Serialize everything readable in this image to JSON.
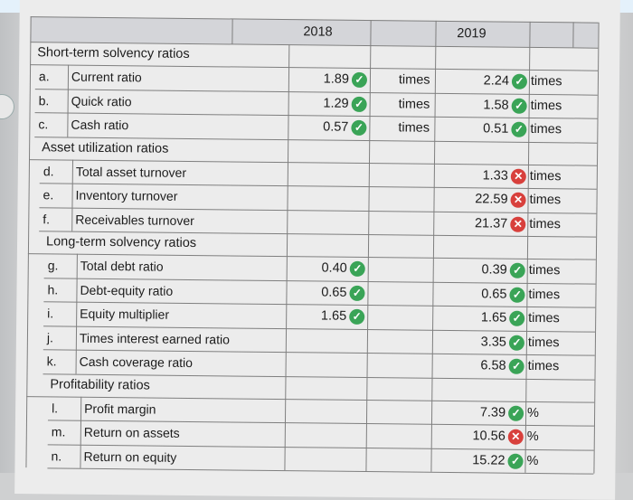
{
  "header": {
    "years": [
      "2018",
      "2019"
    ]
  },
  "sections": [
    {
      "title": "Short-term solvency ratios",
      "rows": [
        {
          "letter": "a.",
          "name": "Current ratio",
          "v2018": "1.89",
          "m2018": "ok",
          "u2018": "times",
          "v2019": "2.24",
          "m2019": "ok",
          "u2019": "times"
        },
        {
          "letter": "b.",
          "name": "Quick ratio",
          "v2018": "1.29",
          "m2018": "ok",
          "u2018": "times",
          "v2019": "1.58",
          "m2019": "ok",
          "u2019": "times"
        },
        {
          "letter": "c.",
          "name": "Cash ratio",
          "v2018": "0.57",
          "m2018": "ok",
          "u2018": "times",
          "v2019": "0.51",
          "m2019": "ok",
          "u2019": "times"
        }
      ]
    },
    {
      "title": "Asset utilization ratios",
      "rows": [
        {
          "letter": "d.",
          "name": "Total asset turnover",
          "v2018": "",
          "m2018": "",
          "u2018": "",
          "v2019": "1.33",
          "m2019": "bad",
          "u2019": "times"
        },
        {
          "letter": "e.",
          "name": "Inventory turnover",
          "v2018": "",
          "m2018": "",
          "u2018": "",
          "v2019": "22.59",
          "m2019": "bad",
          "u2019": "times"
        },
        {
          "letter": "f.",
          "name": "Receivables turnover",
          "v2018": "",
          "m2018": "",
          "u2018": "",
          "v2019": "21.37",
          "m2019": "bad",
          "u2019": "times"
        }
      ]
    },
    {
      "title": "Long-term solvency ratios",
      "rows": [
        {
          "letter": "g.",
          "name": "Total debt ratio",
          "v2018": "0.40",
          "m2018": "ok",
          "u2018": "",
          "v2019": "0.39",
          "m2019": "ok",
          "u2019": "times"
        },
        {
          "letter": "h.",
          "name": "Debt-equity ratio",
          "v2018": "0.65",
          "m2018": "ok",
          "u2018": "",
          "v2019": "0.65",
          "m2019": "ok",
          "u2019": "times"
        },
        {
          "letter": "i.",
          "name": "Equity multiplier",
          "v2018": "1.65",
          "m2018": "ok",
          "u2018": "",
          "v2019": "1.65",
          "m2019": "ok",
          "u2019": "times"
        },
        {
          "letter": "j.",
          "name": "Times interest earned ratio",
          "v2018": "",
          "m2018": "",
          "u2018": "",
          "v2019": "3.35",
          "m2019": "ok",
          "u2019": "times"
        },
        {
          "letter": "k.",
          "name": "Cash coverage ratio",
          "v2018": "",
          "m2018": "",
          "u2018": "",
          "v2019": "6.58",
          "m2019": "ok",
          "u2019": "times"
        }
      ]
    },
    {
      "title": "Profitability ratios",
      "rows": [
        {
          "letter": "l.",
          "name": "Profit margin",
          "v2018": "",
          "m2018": "",
          "u2018": "",
          "v2019": "7.39",
          "m2019": "ok",
          "u2019": "%"
        },
        {
          "letter": "m.",
          "name": "Return on assets",
          "v2018": "",
          "m2018": "",
          "u2018": "",
          "v2019": "10.56",
          "m2019": "bad",
          "u2019": "%"
        },
        {
          "letter": "n.",
          "name": "Return on equity",
          "v2018": "",
          "m2018": "",
          "u2018": "",
          "v2019": "15.22",
          "m2019": "ok",
          "u2019": "%"
        }
      ]
    }
  ],
  "colors": {
    "correct": "#3aa457",
    "incorrect": "#d8403c"
  }
}
